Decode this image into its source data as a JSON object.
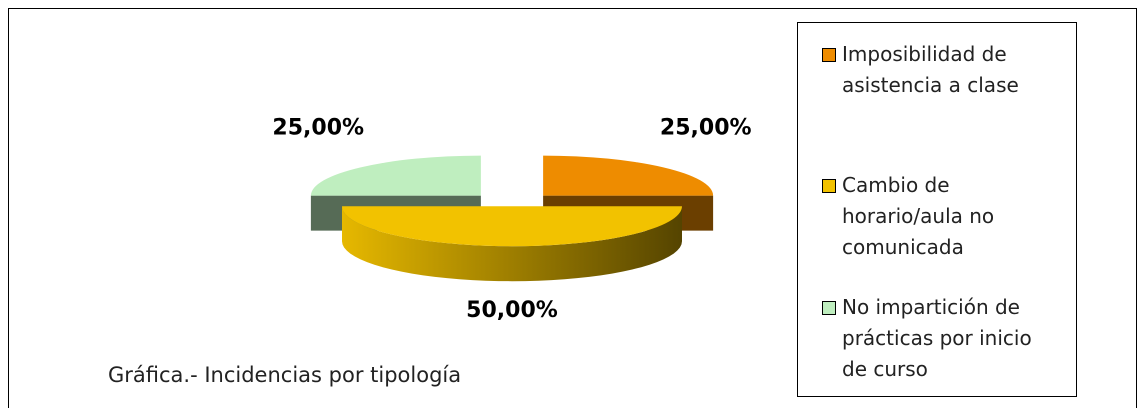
{
  "chart_data": {
    "type": "pie",
    "title": "Gráfica.- Incidencias por tipología",
    "categories": [
      "Imposibilidad de asistencia a clase",
      "Cambio de horario/aula no comunicada",
      "No impartición de prácticas por inicio de curso"
    ],
    "values": [
      25,
      50,
      25
    ],
    "value_labels": [
      "25,00%",
      "50,00%",
      "25,00%"
    ],
    "colors": [
      "#ee8c00",
      "#f2c200",
      "#bfeebf"
    ],
    "legend": "right"
  }
}
